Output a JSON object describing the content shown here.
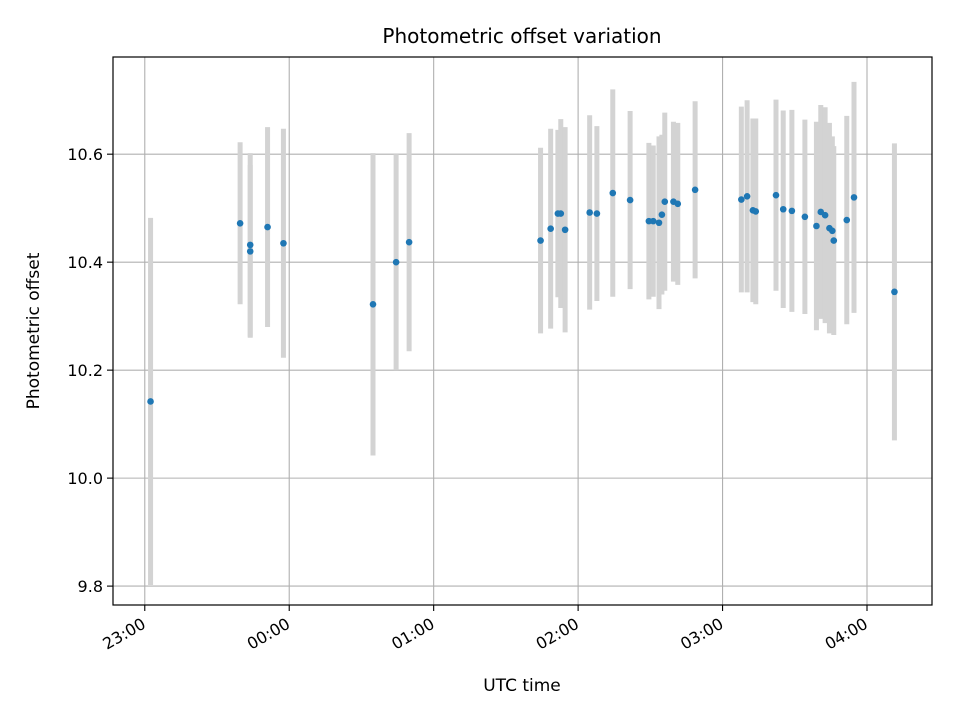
{
  "chart_data": {
    "type": "scatter",
    "title": "Photometric offset variation",
    "xlabel": "UTC time",
    "ylabel": "Photometric offset",
    "x_axis": "time",
    "xlim": [
      -0.22,
      5.45
    ],
    "ylim": [
      9.765,
      10.78
    ],
    "grid": true,
    "x_ticks": [
      {
        "value": 0,
        "label": "23:00"
      },
      {
        "value": 1,
        "label": "00:00"
      },
      {
        "value": 2,
        "label": "01:00"
      },
      {
        "value": 3,
        "label": "02:00"
      },
      {
        "value": 4,
        "label": "03:00"
      },
      {
        "value": 5,
        "label": "04:00"
      }
    ],
    "y_ticks": [
      9.8,
      10.0,
      10.2,
      10.4,
      10.6
    ],
    "colors": {
      "marker": "#1f77b4",
      "errorbar": "#d3d3d3",
      "grid": "#b0b0b0"
    },
    "series": [
      {
        "x": [
          0.04,
          0.66,
          0.73,
          0.73,
          0.85,
          0.96,
          1.58,
          1.74,
          1.83,
          2.74,
          2.81,
          2.86,
          2.88,
          2.91,
          3.08,
          3.13,
          3.24,
          3.36,
          3.49,
          3.52,
          3.56,
          3.58,
          3.6,
          3.66,
          3.69,
          3.81,
          4.13,
          4.17,
          4.21,
          4.23,
          4.37,
          4.42,
          4.48,
          4.57,
          4.65,
          4.68,
          4.71,
          4.74,
          4.76,
          4.77,
          4.86,
          4.91,
          5.19
        ],
        "y": [
          10.142,
          10.472,
          10.432,
          10.42,
          10.465,
          10.435,
          10.322,
          10.4,
          10.437,
          10.44,
          10.462,
          10.49,
          10.49,
          10.46,
          10.492,
          10.49,
          10.528,
          10.515,
          10.476,
          10.476,
          10.473,
          10.488,
          10.512,
          10.512,
          10.508,
          10.534,
          10.516,
          10.522,
          10.496,
          10.494,
          10.524,
          10.498,
          10.495,
          10.484,
          10.467,
          10.493,
          10.487,
          10.463,
          10.458,
          10.44,
          10.478,
          10.52,
          10.345
        ],
        "yerr": [
          0.34,
          0.15,
          0.17,
          0.16,
          0.185,
          0.212,
          0.28,
          0.2,
          0.202,
          0.172,
          0.185,
          0.155,
          0.175,
          0.19,
          0.18,
          0.162,
          0.192,
          0.165,
          0.145,
          0.14,
          0.16,
          0.148,
          0.165,
          0.148,
          0.15,
          0.164,
          0.172,
          0.178,
          0.17,
          0.172,
          0.177,
          0.183,
          0.187,
          0.18,
          0.193,
          0.198,
          0.2,
          0.195,
          0.175,
          0.175,
          0.193,
          0.214,
          0.275
        ]
      }
    ]
  }
}
